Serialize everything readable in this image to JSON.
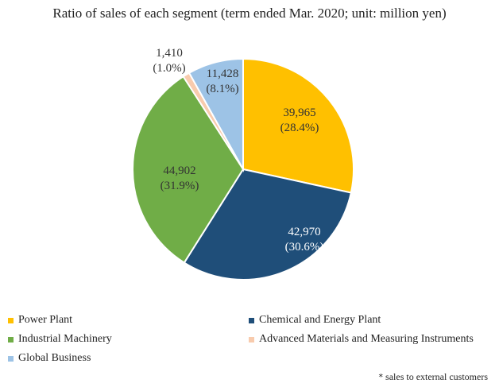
{
  "chart_data": {
    "type": "pie",
    "title": "Ratio of sales of each segment (term ended Mar. 2020; unit: million yen)",
    "slices": [
      {
        "name": "Power Plant",
        "value": 39965,
        "label": "39,965",
        "percent_label": "(28.4%)",
        "color": "#FFC000"
      },
      {
        "name": "Chemical and Energy Plant",
        "value": 42970,
        "label": "42,970",
        "percent_label": "(30.6%)",
        "color": "#1F4E79"
      },
      {
        "name": "Industrial Machinery",
        "value": 44902,
        "label": "44,902",
        "percent_label": "(31.9%)",
        "color": "#70AD47"
      },
      {
        "name": "Advanced Materials and Measuring Instruments",
        "value": 1410,
        "label": "1,410",
        "percent_label": "(1.0%)",
        "color": "#F8CBAD"
      },
      {
        "name": "Global Business",
        "value": 11428,
        "label": "11,428",
        "percent_label": "(8.1%)",
        "color": "#9DC3E6"
      }
    ],
    "legend_position": "bottom",
    "note": "sales to external customers",
    "note_marker": "*"
  }
}
